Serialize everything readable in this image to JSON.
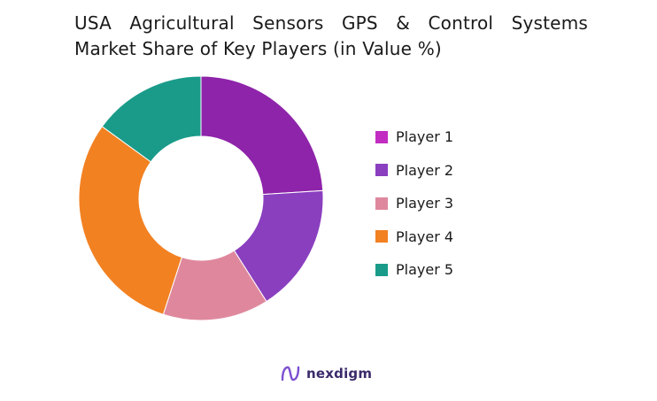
{
  "chart_data": {
    "type": "pie",
    "variant": "donut",
    "title_line1": "USA Agricultural Sensors GPS & Control Systems",
    "title_line2": "Market Share of Key Players (in Value %)",
    "categories": [
      "Player 1",
      "Player 2",
      "Player 3",
      "Player 4",
      "Player 5"
    ],
    "values": [
      24,
      17,
      14,
      30,
      15
    ],
    "colors": [
      "#8e24aa",
      "#8a3fbf",
      "#df889d",
      "#f28122",
      "#1a9b8a"
    ],
    "legend_colors": [
      "#c12dc1",
      "#8a3fbf",
      "#df889d",
      "#f28122",
      "#1a9b8a"
    ],
    "legend_position": "right"
  },
  "footer": {
    "logo_text": "nexdigm"
  }
}
